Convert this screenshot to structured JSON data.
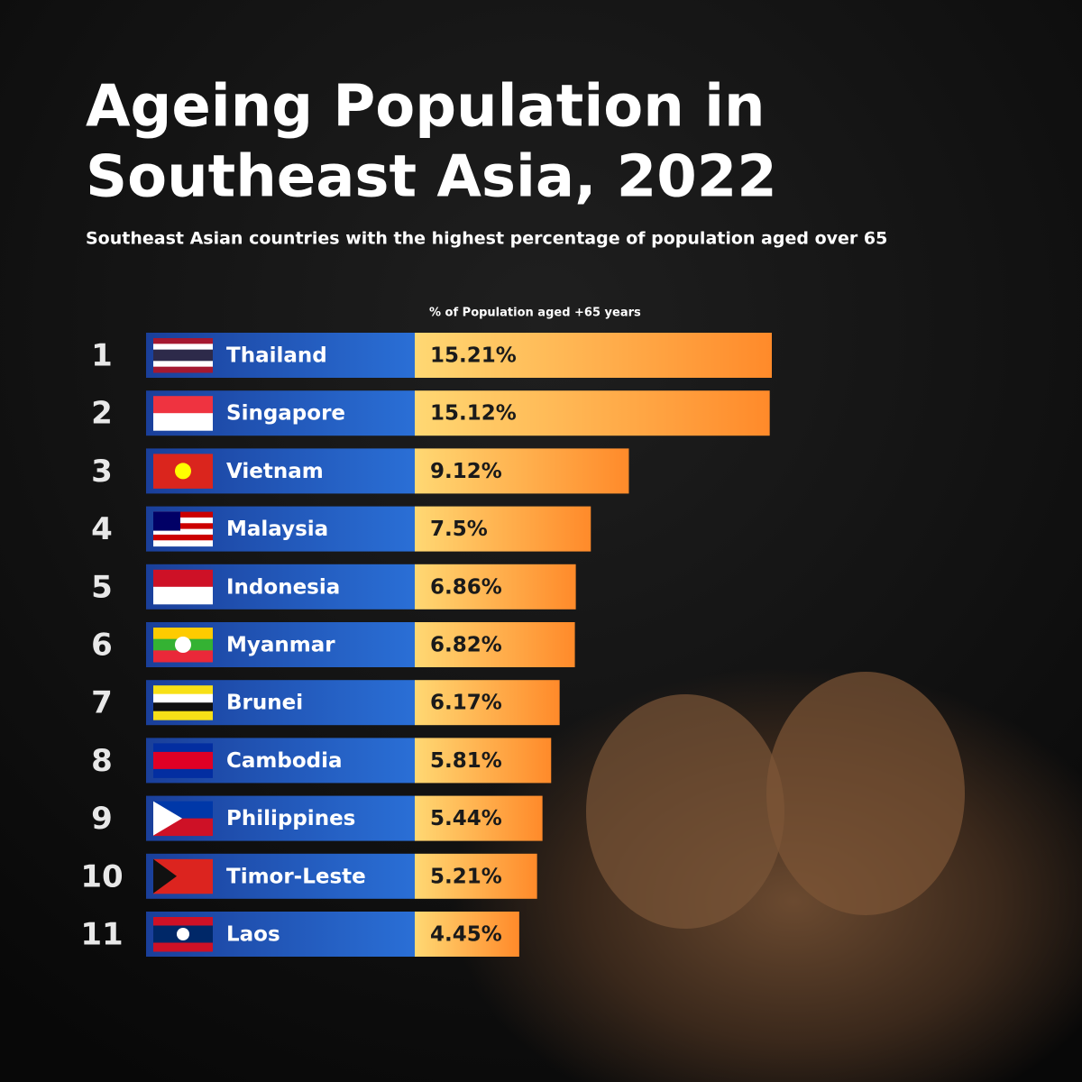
{
  "chart_data": {
    "type": "bar",
    "title": [
      "Ageing Population in",
      "Southeast Asia, 2022"
    ],
    "subtitle": "Southeast Asian countries with the highest percentage of population aged over 65",
    "value_axis_label": "% of Population aged +65 years",
    "ranks": [
      1,
      2,
      3,
      4,
      5,
      6,
      7,
      8,
      9,
      10,
      11
    ],
    "categories": [
      "Thailand",
      "Singapore",
      "Vietnam",
      "Malaysia",
      "Indonesia",
      "Myanmar",
      "Brunei",
      "Cambodia",
      "Philippines",
      "Timor-Leste",
      "Laos"
    ],
    "values": [
      15.21,
      15.12,
      9.12,
      7.5,
      6.86,
      6.82,
      6.17,
      5.81,
      5.44,
      5.21,
      4.45
    ],
    "value_labels": [
      "15.21%",
      "15.12%",
      "9.12%",
      "7.5%",
      "6.86%",
      "6.82%",
      "6.17%",
      "5.81%",
      "5.44%",
      "5.21%",
      "4.45%"
    ],
    "color": "#f7a13a"
  }
}
